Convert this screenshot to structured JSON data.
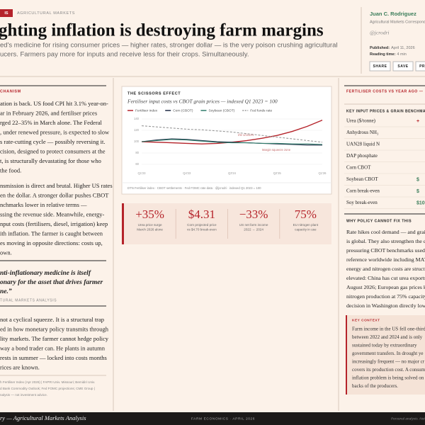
{
  "header": {
    "tag": "IS",
    "section": "AGRICULTURAL MARKETS",
    "title": "ghting inflation is destroying farm margins",
    "subtitle": [
      "ed's medicine for rising consumer prices — higher rates, stronger dollar — is the very poison crushing agricultural",
      "ucers. Farmers pay more for inputs and receive less for their crops. Simultaneously."
    ]
  },
  "byline": {
    "author": "Juan C. Rodriguez",
    "role": "Agricultural Markets Correspond",
    "handle": "@jcrodri",
    "published_label": "Published:",
    "published": "April 11, 2026",
    "reading_label": "Reading time:",
    "reading": "4 min",
    "buttons": [
      "SHARE",
      "SAVE",
      "PRI"
    ]
  },
  "article": {
    "section_label": "CHANISM",
    "paragraphs": [
      [
        "ation is back. US food CPI hit 3.1% year-on-",
        "ar in February 2026, and fertiliser prices",
        "rged 22–35% in March alone. The Federal",
        ", under renewed pressure, is expected to slow",
        "s rate-cutting cycle — possibly reversing it.",
        "cision, designed to protect consumers at the",
        "t, is structurally devastating for those who",
        "the food."
      ],
      [
        "nsmission is direct and brutal. Higher US rates",
        "en the dollar. A stronger dollar pushes CBOT",
        "nchmarks lower in relative terms —",
        "ssing the revenue side. Meanwhile, energy-",
        "nput costs (fertilisers, diesel, irrigation) keep",
        "ith inflation. The farmer is caught between",
        "es moving in opposite directions: costs up,",
        "own."
      ]
    ],
    "quote": {
      "lines": [
        "nti-inflationary medicine is itself",
        "onary for the asset that drives farmer",
        "ne.”"
      ],
      "attribution": "TURAL MARKETS ANALYSIS"
    },
    "paragraph3": [
      "not a cyclical squeeze. It is a structural trap",
      "ed in how monetary policy transmits through",
      "lity markets. The farmer cannot hedge policy",
      "way a bond trader can. He plants in autumn",
      "rests in summer — locked into costs months",
      "rices are known."
    ],
    "sources": [
      "h Fertiliser Index (Apr 2026) | FAPRI Univ. Missouri; Bemidiri Univ.",
      "d Bank Commodity Outlook; Fed FOMC projections; CME Group |",
      "nalysis — not investment advice."
    ]
  },
  "chart": {
    "type": "line",
    "kicker": "THE SCISSORS EFFECT",
    "title": "Fertiliser input costs vs CBOT grain prices — indexed Q1 2023 = 100",
    "categories": [
      "Q1'23",
      null,
      null,
      "Q4'23",
      null,
      null,
      "Q3'24",
      null,
      null,
      "Q2'25",
      null,
      null,
      "Q1'26"
    ],
    "series": [
      {
        "name": "Fertiliser index",
        "color": "#b5232a",
        "values": [
          100,
          99,
          98,
          97,
          96,
          97,
          99,
          102,
          106,
          111,
          118,
          127,
          138
        ]
      },
      {
        "name": "Corn (CBOT)",
        "color": "#1d2b44",
        "values": [
          100,
          103,
          105,
          104,
          102,
          100,
          99,
          98,
          97,
          96,
          95,
          94,
          94
        ]
      },
      {
        "name": "Soybean (CBOT)",
        "color": "#2f7a6a",
        "values": [
          100,
          102,
          104,
          103,
          101,
          99,
          98,
          98,
          97,
          97,
          96,
          96,
          95
        ]
      },
      {
        "name": "Fed funds rate",
        "color": "#9a9a9a",
        "dashed": true,
        "values": [
          128,
          126,
          124,
          122,
          121,
          119,
          117,
          114,
          111,
          108,
          105,
          102,
          99
        ]
      }
    ],
    "ylim": [
      60,
      140
    ],
    "yticks": [
      60,
      80,
      100,
      120,
      140
    ],
    "grid": true,
    "annotations": [
      "the scissors",
      "Margin squeeze zone"
    ],
    "source": "DTN Fertiliser index · CBOT settlements · Fed FOMC rate data · @jcrodri · indexed Q1 2023 = 100"
  },
  "stats": [
    {
      "value": "+35%",
      "label": [
        "Urea price surge",
        "March 2026 alone"
      ]
    },
    {
      "value": "$4.31",
      "label": [
        "Corn projected price",
        "vs $4.70 break-even"
      ]
    },
    {
      "value": "−33%",
      "label": [
        "US net farm income",
        "2022 → 2024"
      ]
    },
    {
      "value": "75%",
      "label": [
        "EU nitrogen plant",
        "capacity in use"
      ]
    }
  ],
  "sidebar": {
    "heading": "FERTILISER COSTS VS YEAR AGO —",
    "table_title": "KEY INPUT PRICES & GRAIN BENCHMA",
    "rows": [
      {
        "name": "Urea ($/tonne)",
        "value": "+"
      },
      {
        "name": "Anhydrous NH₃"
      },
      {
        "name": "UAN28 liquid N"
      },
      {
        "name": "DAP phosphate"
      },
      {
        "name": "Corn CBOT"
      },
      {
        "name": "Soybean CBOT",
        "value": "$"
      },
      {
        "name": "Corn break-even",
        "value": "$"
      },
      {
        "name": "Soy break-even",
        "value": "$10"
      }
    ],
    "policy_heading": "WHY POLICY CANNOT FIX THIS",
    "policy": [
      "Rate hikes cool demand — and grain",
      "is global. They also strengthen the dol",
      "pressuring CBOT benchmarks used as",
      "reference worldwide including MATIF",
      "energy and nitrogen costs are structur",
      "elevated: China has cut urea exports u",
      "August 2026; European gas prices kee",
      "nitrogen production at 75% capacity. I",
      "decision in Washington directly lowe"
    ],
    "context_heading": "KEY CONTEXT",
    "context": [
      "Farm income in the US fell one-third",
      "between 2022 and 2024 and is only",
      "sustained today by extraordinary",
      "government transfers. In drought ye",
      "increasingly frequent — no major cr",
      "covers its production cost. A consum",
      "inflation problem is being solved on",
      "backs of the producers."
    ]
  },
  "footer": {
    "left": "ry — Agricultural Markets Analysis",
    "center": "FARM ECONOMICS · APRIL 2026",
    "right": "Personal analysis. Not form"
  }
}
